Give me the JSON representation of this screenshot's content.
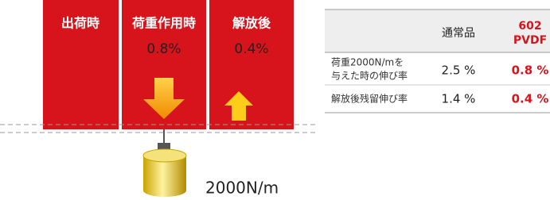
{
  "panels": [
    {
      "label": "出荷時"
    },
    {
      "label": "荷重作用時",
      "value": "0.8%"
    },
    {
      "label": "解放後",
      "value": "0.4%"
    }
  ],
  "weight_label": "2000N/m",
  "table": {
    "header": [
      "通常品",
      [
        "602",
        "PVDF"
      ]
    ],
    "rows": [
      [
        [
          "荷重2000N/mを",
          "与えた時の伸び率"
        ],
        "2.5 %",
        "0.8 %"
      ],
      [
        [
          "解放後残留伸び率"
        ],
        "1.4 %",
        "0.4 %"
      ]
    ]
  }
}
